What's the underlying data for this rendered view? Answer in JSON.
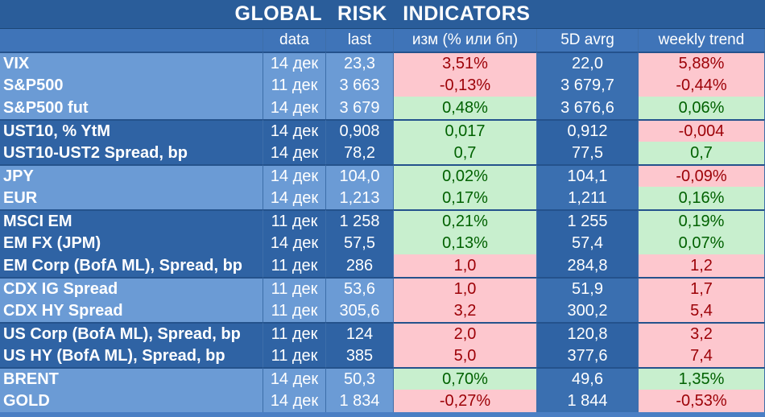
{
  "title": "GLOBAL   RISK   INDICATORS",
  "headers": [
    "",
    "data",
    "last",
    "изм (% или бп)",
    "5D avrg",
    "weekly trend"
  ],
  "rows": [
    {
      "name": "VIX",
      "date": "14 дек",
      "last": "23,3",
      "change": "3,51%",
      "change_sign": "neg",
      "avg": "22,0",
      "trend": "5,88%",
      "trend_sign": "neg",
      "group_start": true,
      "shade": "light"
    },
    {
      "name": "S&P500",
      "date": "11 дек",
      "last": "3 663",
      "change": "-0,13%",
      "change_sign": "neg",
      "avg": "3 679,7",
      "trend": "-0,44%",
      "trend_sign": "neg",
      "group_start": false,
      "shade": "light"
    },
    {
      "name": "S&P500 fut",
      "date": "14 дек",
      "last": "3 679",
      "change": "0,48%",
      "change_sign": "pos",
      "avg": "3 676,6",
      "trend": "0,06%",
      "trend_sign": "pos",
      "group_start": false,
      "shade": "light"
    },
    {
      "name": "UST10, % YtM",
      "date": "14 дек",
      "last": "0,908",
      "change": "0,017",
      "change_sign": "pos",
      "avg": "0,912",
      "trend": "-0,004",
      "trend_sign": "neg",
      "group_start": true,
      "shade": "dark"
    },
    {
      "name": "UST10-UST2 Spread, bp",
      "date": "14 дек",
      "last": "78,2",
      "change": "0,7",
      "change_sign": "pos",
      "avg": "77,5",
      "trend": "0,7",
      "trend_sign": "pos",
      "group_start": false,
      "shade": "dark"
    },
    {
      "name": "JPY",
      "date": "14 дек",
      "last": "104,0",
      "change": "0,02%",
      "change_sign": "pos",
      "avg": "104,1",
      "trend": "-0,09%",
      "trend_sign": "neg",
      "group_start": true,
      "shade": "light"
    },
    {
      "name": "EUR",
      "date": "14 дек",
      "last": "1,213",
      "change": "0,17%",
      "change_sign": "pos",
      "avg": "1,211",
      "trend": "0,16%",
      "trend_sign": "pos",
      "group_start": false,
      "shade": "light"
    },
    {
      "name": "MSCI EM",
      "date": "11 дек",
      "last": "1 258",
      "change": "0,21%",
      "change_sign": "pos",
      "avg": "1 255",
      "trend": "0,19%",
      "trend_sign": "pos",
      "group_start": true,
      "shade": "dark"
    },
    {
      "name": "EM FX (JPM)",
      "date": "14 дек",
      "last": "57,5",
      "change": "0,13%",
      "change_sign": "pos",
      "avg": "57,4",
      "trend": "0,07%",
      "trend_sign": "pos",
      "group_start": false,
      "shade": "dark"
    },
    {
      "name": "EM Corp (BofA ML), Spread, bp",
      "date": "11 дек",
      "last": "286",
      "change": "1,0",
      "change_sign": "neg",
      "avg": "284,8",
      "trend": "1,2",
      "trend_sign": "neg",
      "group_start": false,
      "shade": "dark"
    },
    {
      "name": "CDX IG Spread",
      "date": "11 дек",
      "last": "53,6",
      "change": "1,0",
      "change_sign": "neg",
      "avg": "51,9",
      "trend": "1,7",
      "trend_sign": "neg",
      "group_start": true,
      "shade": "light"
    },
    {
      "name": "CDX HY Spread",
      "date": "11 дек",
      "last": "305,6",
      "change": "3,2",
      "change_sign": "neg",
      "avg": "300,2",
      "trend": "5,4",
      "trend_sign": "neg",
      "group_start": false,
      "shade": "light"
    },
    {
      "name": "US Corp (BofA ML), Spread, bp",
      "date": "11 дек",
      "last": "124",
      "change": "2,0",
      "change_sign": "neg",
      "avg": "120,8",
      "trend": "3,2",
      "trend_sign": "neg",
      "group_start": true,
      "shade": "dark"
    },
    {
      "name": "US HY (BofA ML), Spread, bp",
      "date": "11 дек",
      "last": "385",
      "change": "5,0",
      "change_sign": "neg",
      "avg": "377,6",
      "trend": "7,4",
      "trend_sign": "neg",
      "group_start": false,
      "shade": "dark"
    },
    {
      "name": "BRENT",
      "date": "14 дек",
      "last": "50,3",
      "change": "0,70%",
      "change_sign": "pos",
      "avg": "49,6",
      "trend": "1,35%",
      "trend_sign": "pos",
      "group_start": true,
      "shade": "light"
    },
    {
      "name": "GOLD",
      "date": "14 дек",
      "last": "1 834",
      "change": "-0,27%",
      "change_sign": "neg",
      "avg": "1 844",
      "trend": "-0,53%",
      "trend_sign": "neg",
      "group_start": false,
      "shade": "light"
    }
  ],
  "colors": {
    "positive_fill": "#c8efce",
    "positive_text": "#006100",
    "negative_fill": "#fdc7ce",
    "negative_text": "#9c0006",
    "header": "#2a5d9a"
  }
}
